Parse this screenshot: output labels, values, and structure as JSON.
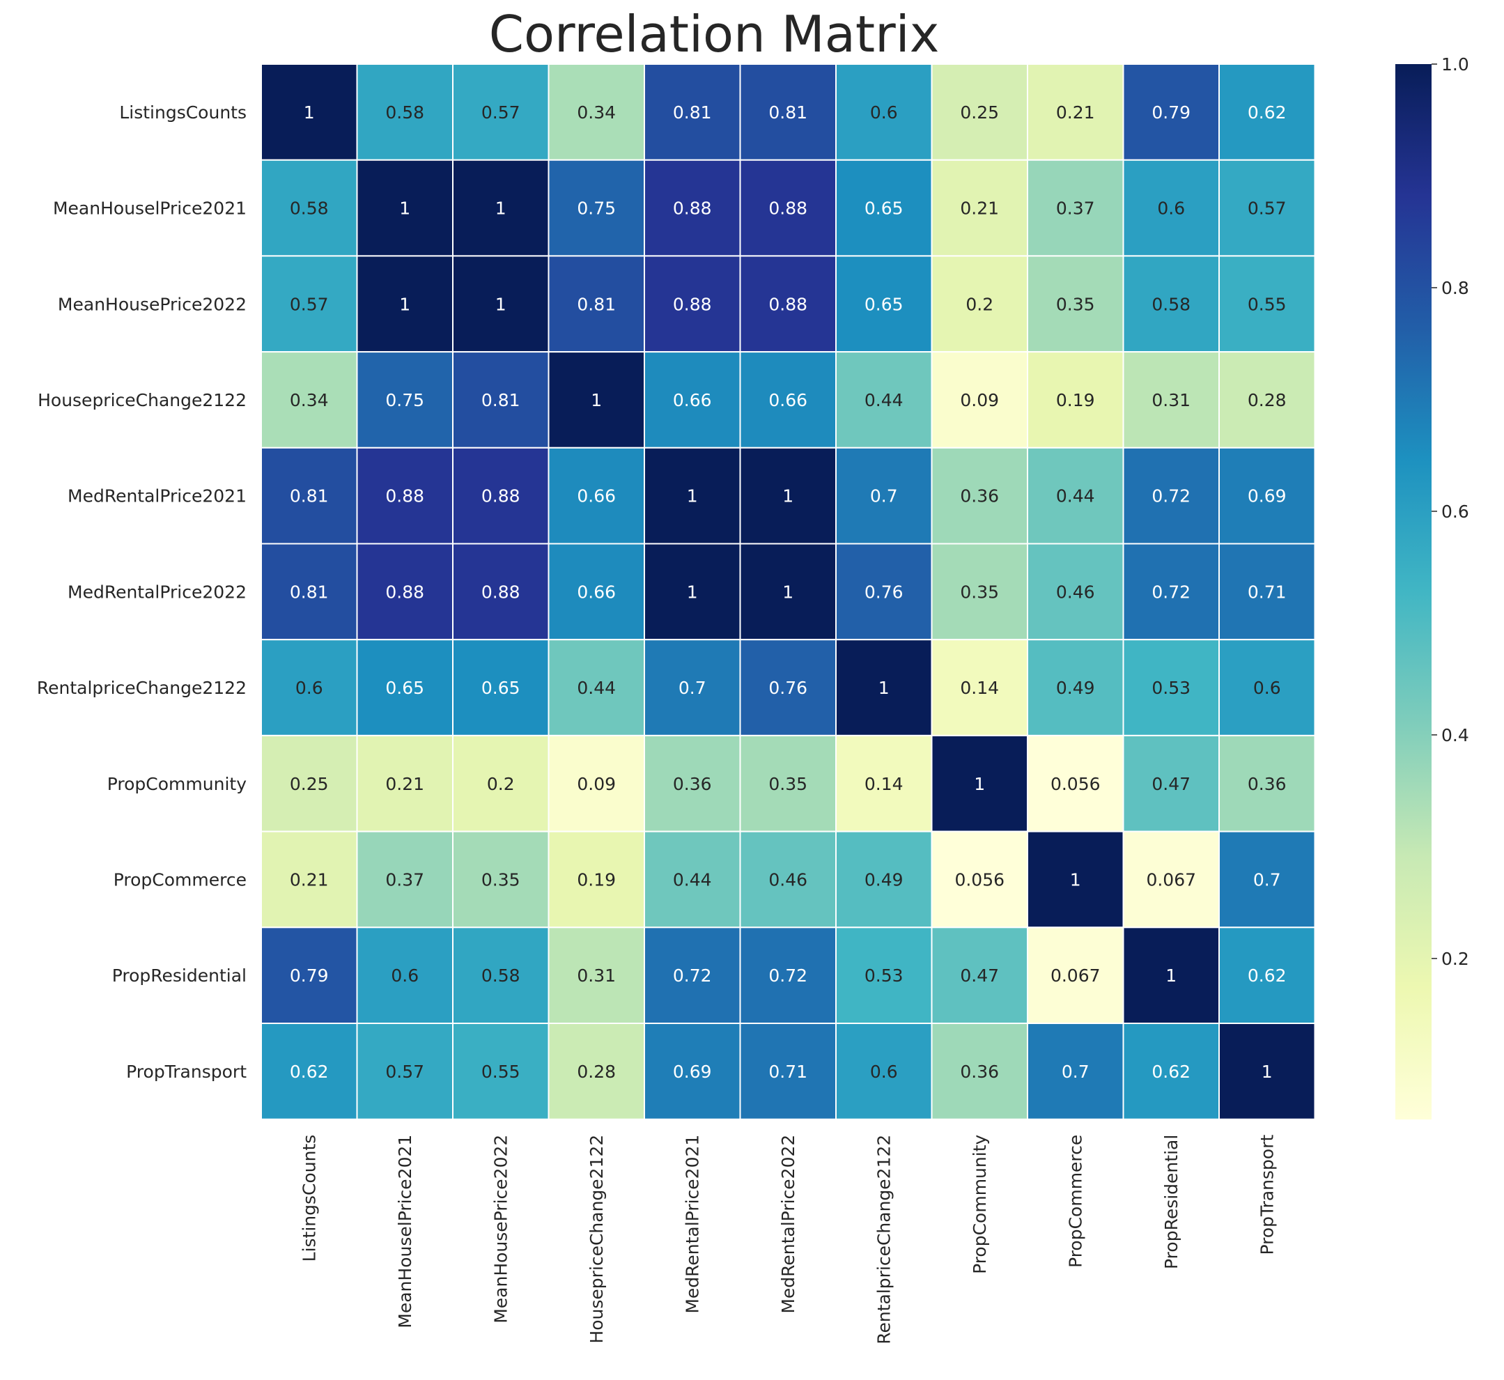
{
  "chart_data": {
    "type": "heatmap",
    "title": "Correlation Matrix",
    "variables": [
      "ListingsCounts",
      "MeanHouselPrice2021",
      "MeanHousePrice2022",
      "HousepriceChange2122",
      "MedRentalPrice2021",
      "MedRentalPrice2022",
      "RentalpriceChange2122",
      "PropCommunity",
      "PropCommerce",
      "PropResidential",
      "PropTransport"
    ],
    "values": [
      [
        1,
        0.58,
        0.57,
        0.34,
        0.81,
        0.81,
        0.6,
        0.25,
        0.21,
        0.79,
        0.62
      ],
      [
        0.58,
        1,
        1,
        0.75,
        0.88,
        0.88,
        0.65,
        0.21,
        0.37,
        0.6,
        0.57
      ],
      [
        0.57,
        1,
        1,
        0.81,
        0.88,
        0.88,
        0.65,
        0.2,
        0.35,
        0.58,
        0.55
      ],
      [
        0.34,
        0.75,
        0.81,
        1,
        0.66,
        0.66,
        0.44,
        0.09,
        0.19,
        0.31,
        0.28
      ],
      [
        0.81,
        0.88,
        0.88,
        0.66,
        1,
        1,
        0.7,
        0.36,
        0.44,
        0.72,
        0.69
      ],
      [
        0.81,
        0.88,
        0.88,
        0.66,
        1,
        1,
        0.76,
        0.35,
        0.46,
        0.72,
        0.71
      ],
      [
        0.6,
        0.65,
        0.65,
        0.44,
        0.7,
        0.76,
        1,
        0.14,
        0.49,
        0.53,
        0.6
      ],
      [
        0.25,
        0.21,
        0.2,
        0.09,
        0.36,
        0.35,
        0.14,
        1,
        0.056,
        0.47,
        0.36
      ],
      [
        0.21,
        0.37,
        0.35,
        0.19,
        0.44,
        0.46,
        0.49,
        0.056,
        1,
        0.067,
        0.7
      ],
      [
        0.79,
        0.6,
        0.58,
        0.31,
        0.72,
        0.72,
        0.53,
        0.47,
        0.067,
        1,
        0.62
      ],
      [
        0.62,
        0.57,
        0.55,
        0.28,
        0.69,
        0.71,
        0.6,
        0.36,
        0.7,
        0.62,
        1
      ]
    ],
    "value_labels": [
      [
        "1",
        "0.58",
        "0.57",
        "0.34",
        "0.81",
        "0.81",
        "0.6",
        "0.25",
        "0.21",
        "0.79",
        "0.62"
      ],
      [
        "0.58",
        "1",
        "1",
        "0.75",
        "0.88",
        "0.88",
        "0.65",
        "0.21",
        "0.37",
        "0.6",
        "0.57"
      ],
      [
        "0.57",
        "1",
        "1",
        "0.81",
        "0.88",
        "0.88",
        "0.65",
        "0.2",
        "0.35",
        "0.58",
        "0.55"
      ],
      [
        "0.34",
        "0.75",
        "0.81",
        "1",
        "0.66",
        "0.66",
        "0.44",
        "0.09",
        "0.19",
        "0.31",
        "0.28"
      ],
      [
        "0.81",
        "0.88",
        "0.88",
        "0.66",
        "1",
        "1",
        "0.7",
        "0.36",
        "0.44",
        "0.72",
        "0.69"
      ],
      [
        "0.81",
        "0.88",
        "0.88",
        "0.66",
        "1",
        "1",
        "0.76",
        "0.35",
        "0.46",
        "0.72",
        "0.71"
      ],
      [
        "0.6",
        "0.65",
        "0.65",
        "0.44",
        "0.7",
        "0.76",
        "1",
        "0.14",
        "0.49",
        "0.53",
        "0.6"
      ],
      [
        "0.25",
        "0.21",
        "0.2",
        "0.09",
        "0.36",
        "0.35",
        "0.14",
        "1",
        "0.056",
        "0.47",
        "0.36"
      ],
      [
        "0.21",
        "0.37",
        "0.35",
        "0.19",
        "0.44",
        "0.46",
        "0.49",
        "0.056",
        "1",
        "0.067",
        "0.7"
      ],
      [
        "0.79",
        "0.6",
        "0.58",
        "0.31",
        "0.72",
        "0.72",
        "0.53",
        "0.47",
        "0.067",
        "1",
        "0.62"
      ],
      [
        "0.62",
        "0.57",
        "0.55",
        "0.28",
        "0.69",
        "0.71",
        "0.6",
        "0.36",
        "0.7",
        "0.62",
        "1"
      ]
    ],
    "colormap": "YlGnBu",
    "colormap_stops": [
      "#ffffd9",
      "#edf8b1",
      "#c7e9b4",
      "#7fcdbb",
      "#41b6c4",
      "#1d91c0",
      "#225ea8",
      "#253494",
      "#081d58"
    ],
    "color_range": [
      0.056,
      1
    ],
    "colorbar_ticks": [
      0.2,
      0.4,
      0.6,
      0.8,
      1.0
    ],
    "colorbar_tick_labels": [
      "0.2",
      "0.4",
      "0.6",
      "0.8",
      "1.0"
    ],
    "grid_line_color": "#ffffff",
    "dark_text_color": "#262626",
    "light_text_color": "#ffffff"
  }
}
